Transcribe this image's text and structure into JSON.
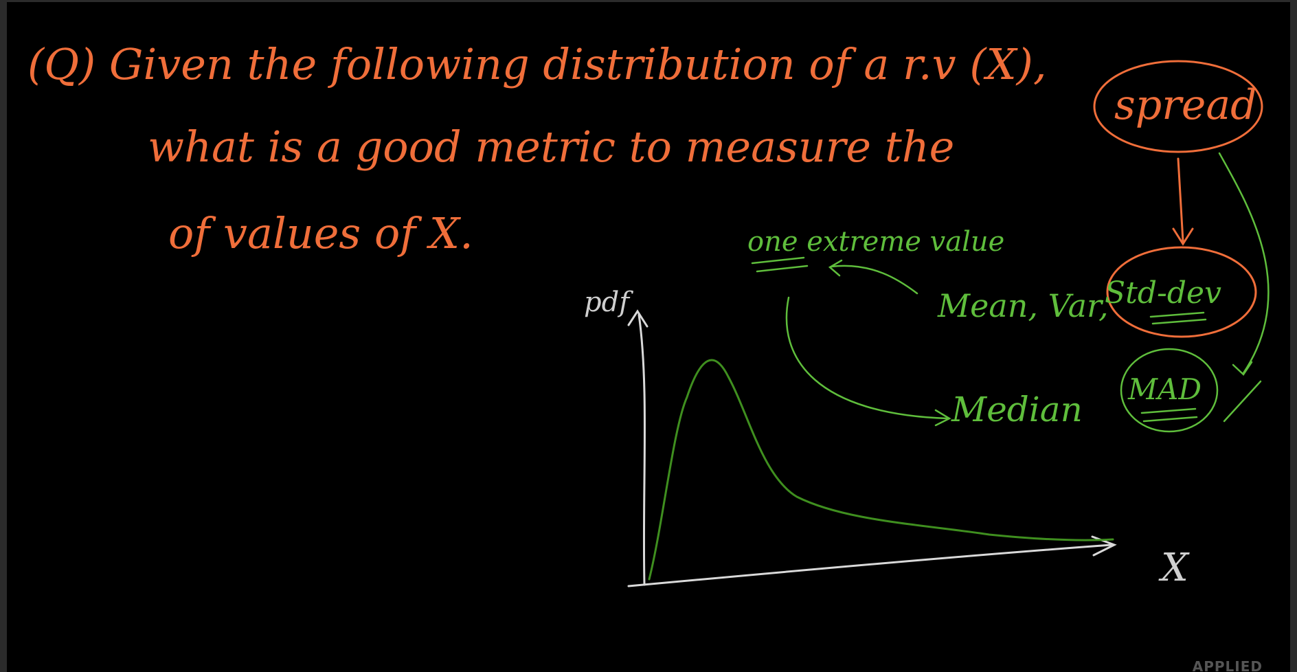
{
  "question": {
    "line1": "(Q) Given the following distribution of a r.v (X),",
    "line2": "what is a good metric to measure the",
    "spread_word": "spread",
    "line3": "of values of X."
  },
  "annotations": {
    "one_extreme_value": "one extreme value",
    "mean_var": "Mean, Var,",
    "std_dev": "Std-dev",
    "median": "Median",
    "mad": "MAD"
  },
  "graph": {
    "y_axis_label": "pdf",
    "x_axis_label": "X"
  },
  "watermark": "APPLIED",
  "colors": {
    "question_ink": "#f06e3a",
    "annotation_ink": "#5fbe3c",
    "axis_ink": "#d9d9d9",
    "curve_ink": "#3f8f1f",
    "background": "#000000"
  }
}
